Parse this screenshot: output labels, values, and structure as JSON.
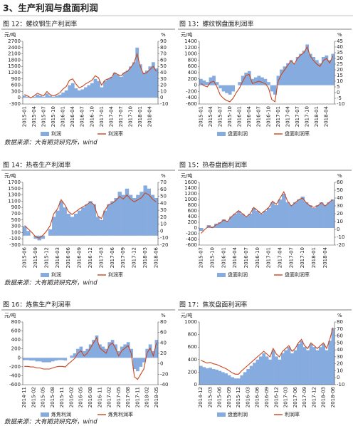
{
  "heading": "3、生产利润与盘面利润",
  "sources": [
    "数据来源：大有期货研究所，wind",
    "数据来源：大有期货研究所，wind",
    "数据来源：大有期货研究所，wind"
  ],
  "chart_data": [
    {
      "type": "combo",
      "title": "图 12：螺纹钢生产利润率",
      "y_label": "元/吨",
      "y2_label": "%",
      "categories": [
        "2015-01",
        null,
        null,
        "2015-04",
        null,
        null,
        "2015-07",
        null,
        null,
        "2015-10",
        null,
        null,
        "2016-01",
        null,
        null,
        "2016-04",
        null,
        null,
        "2016-07",
        null,
        null,
        "2016-10",
        null,
        null,
        "2017-01",
        null,
        null,
        "2017-04",
        null,
        null,
        "2017-07",
        null,
        null,
        "2017-10",
        null,
        null,
        "2018-01",
        null,
        null,
        "2018-04",
        null,
        null
      ],
      "series": [
        {
          "name": "利润",
          "color": "#86abdf",
          "values": [
            100,
            50,
            0,
            50,
            150,
            100,
            50,
            200,
            100,
            50,
            100,
            150,
            250,
            350,
            600,
            700,
            450,
            350,
            400,
            500,
            600,
            700,
            900,
            800,
            500,
            800,
            900,
            1000,
            1200,
            1100,
            1000,
            1200,
            1300,
            1500,
            1700,
            2400,
            1600,
            1200,
            1300,
            1500,
            1700,
            1400
          ]
        },
        {
          "name": "利润率",
          "color": "#c8461e",
          "axis": "y2",
          "values": [
            5,
            3,
            0,
            3,
            7,
            5,
            3,
            10,
            5,
            3,
            5,
            8,
            14,
            18,
            28,
            30,
            22,
            16,
            18,
            22,
            25,
            28,
            35,
            32,
            20,
            28,
            30,
            32,
            40,
            37,
            35,
            40,
            42,
            48,
            55,
            70,
            50,
            38,
            40,
            45,
            50,
            42
          ]
        }
      ],
      "ylim": [
        -300,
        2700
      ],
      "yticks": [
        -300,
        0,
        300,
        600,
        900,
        1200,
        1500,
        1800,
        2100,
        2400,
        2700
      ],
      "y2lim": [
        -10,
        90
      ],
      "y2ticks": [
        -10,
        0,
        10,
        20,
        30,
        40,
        50,
        60,
        70,
        80,
        90
      ]
    },
    {
      "type": "combo",
      "title": "图 13：螺纹钢盘面利润率",
      "y_label": "元/吨",
      "y2_label": "%",
      "categories": [
        "2015-01",
        null,
        null,
        "2015-04",
        null,
        null,
        "2015-07",
        null,
        null,
        "2015-10",
        null,
        null,
        "2016-01",
        null,
        null,
        "2016-04",
        null,
        null,
        "2016-07",
        null,
        null,
        "2016-10",
        null,
        null,
        "2017-01",
        null,
        null,
        "2017-04",
        null,
        null,
        "2017-07",
        null,
        null,
        "2017-10",
        null,
        null,
        "2018-01",
        null,
        null,
        "2018-04",
        null,
        null
      ],
      "series": [
        {
          "name": "盘面利润",
          "color": "#86abdf",
          "values": [
            200,
            150,
            100,
            250,
            300,
            100,
            -100,
            -200,
            -250,
            -300,
            -200,
            0,
            100,
            300,
            400,
            450,
            200,
            250,
            300,
            250,
            200,
            100,
            -200,
            -300,
            300,
            500,
            600,
            700,
            800,
            700,
            900,
            1000,
            1100,
            1300,
            1000,
            900,
            800,
            700,
            900,
            950,
            800,
            1000
          ]
        },
        {
          "name": "盘面利润率",
          "color": "#c8461e",
          "axis": "y2",
          "values": [
            8,
            6,
            5,
            9,
            10,
            5,
            -2,
            -5,
            -7,
            -8,
            -5,
            0,
            4,
            10,
            15,
            16,
            8,
            9,
            10,
            9,
            8,
            4,
            -6,
            -8,
            10,
            16,
            20,
            24,
            28,
            25,
            30,
            33,
            35,
            40,
            32,
            28,
            25,
            23,
            28,
            30,
            26,
            32
          ]
        }
      ],
      "ylim": [
        -600,
        1400
      ],
      "yticks": [
        -600,
        -400,
        -200,
        0,
        200,
        400,
        600,
        800,
        1000,
        1200,
        1400
      ],
      "y2lim": [
        -10,
        45
      ],
      "y2ticks": [
        -10,
        -5,
        0,
        5,
        10,
        15,
        20,
        25,
        30,
        35,
        40,
        45
      ]
    },
    {
      "type": "combo",
      "title": "图 14：热卷生产利润率",
      "y_label": "元/吨",
      "y2_label": "%",
      "categories": [
        "2015-06",
        null,
        null,
        "2015-09",
        null,
        null,
        "2015-12",
        null,
        null,
        "2016-03",
        null,
        null,
        "2016-06",
        null,
        null,
        "2016-09",
        null,
        null,
        "2016-12",
        null,
        null,
        "2017-03",
        null,
        null,
        "2017-06",
        null,
        null,
        "2017-09",
        null,
        null,
        "2017-12",
        null,
        null,
        "2018-03",
        null,
        null,
        "2018-06"
      ],
      "series": [
        {
          "name": "利润",
          "color": "#86abdf",
          "values": [
            300,
            150,
            0,
            -100,
            -150,
            -100,
            0,
            200,
            600,
            800,
            1100,
            900,
            700,
            600,
            700,
            800,
            900,
            1000,
            1100,
            1000,
            600,
            500,
            800,
            1000,
            1100,
            1200,
            1400,
            1300,
            1500,
            1300,
            1200,
            1300,
            1400,
            1600,
            1500,
            1300,
            1200
          ]
        },
        {
          "name": "利润率",
          "color": "#c8461e",
          "axis": "y2",
          "values": [
            8,
            3,
            -2,
            -8,
            -10,
            -6,
            0,
            8,
            25,
            32,
            45,
            38,
            28,
            24,
            28,
            32,
            35,
            38,
            42,
            38,
            22,
            18,
            30,
            38,
            40,
            44,
            50,
            46,
            52,
            46,
            42,
            45,
            48,
            55,
            52,
            46,
            42
          ]
        }
      ],
      "ylim": [
        -300,
        1700
      ],
      "yticks": [
        -300,
        -100,
        100,
        300,
        500,
        700,
        900,
        1100,
        1300,
        1500,
        1700
      ],
      "y2lim": [
        -20,
        70
      ],
      "y2ticks": [
        -20,
        -10,
        0,
        10,
        20,
        30,
        40,
        50,
        60,
        70
      ]
    },
    {
      "type": "combo",
      "title": "图 15：热卷盘面利润率",
      "y_label": "元/吨",
      "y2_label": "%",
      "categories": [
        "2015-07",
        null,
        null,
        "2015-10",
        null,
        null,
        "2016-01",
        null,
        null,
        "2016-04",
        null,
        null,
        "2016-07",
        null,
        null,
        "2016-10",
        null,
        null,
        "2017-01",
        null,
        null,
        "2017-04",
        null,
        null,
        "2017-07",
        null,
        null,
        "2017-10",
        null,
        null,
        "2018-01",
        null,
        null,
        "2018-04",
        null,
        null
      ],
      "series": [
        {
          "name": "盘面利润",
          "color": "#86abdf",
          "values": [
            -100,
            0,
            100,
            50,
            150,
            200,
            300,
            250,
            400,
            500,
            600,
            500,
            400,
            500,
            700,
            600,
            500,
            600,
            700,
            900,
            800,
            1000,
            1200,
            900,
            800,
            900,
            1000,
            1100,
            900,
            800,
            700,
            800,
            900,
            800,
            900,
            1000
          ]
        },
        {
          "name": "盘面利润率",
          "color": "#c8461e",
          "axis": "y2",
          "values": [
            -5,
            0,
            4,
            2,
            6,
            8,
            12,
            10,
            16,
            20,
            24,
            20,
            16,
            20,
            28,
            24,
            20,
            24,
            28,
            36,
            32,
            40,
            48,
            36,
            30,
            34,
            38,
            40,
            34,
            30,
            28,
            30,
            34,
            30,
            34,
            38
          ]
        }
      ],
      "ylim": [
        -600,
        1600
      ],
      "yticks": [
        -600,
        -400,
        -200,
        0,
        200,
        400,
        600,
        800,
        1000,
        1200,
        1400,
        1600
      ],
      "y2lim": [
        -20,
        60
      ],
      "y2ticks": [
        -20,
        -10,
        0,
        10,
        20,
        30,
        40,
        50,
        60
      ]
    },
    {
      "type": "combo",
      "title": "图 16：炼焦生产利润率",
      "y_label": "元/吨",
      "y2_label": "%",
      "categories": [
        "2014-11",
        null,
        null,
        "2015-02",
        null,
        null,
        "2015-05",
        null,
        null,
        "2015-08",
        null,
        null,
        "2015-11",
        null,
        null,
        "2016-02",
        null,
        null,
        "2016-05",
        null,
        null,
        "2016-08",
        null,
        null,
        "2016-11",
        null,
        null,
        "2017-02",
        null,
        null,
        "2017-05",
        null,
        null,
        "2017-08",
        null,
        null,
        "2017-11",
        null,
        null,
        "2018-02",
        null,
        null,
        "2018-05"
      ],
      "series": [
        {
          "name": "炼焦利润",
          "color": "#86abdf",
          "values": [
            -50,
            -50,
            -60,
            -60,
            -80,
            -80,
            -100,
            -100,
            -100,
            -80,
            -60,
            -50,
            -50,
            -60,
            0,
            50,
            100,
            200,
            250,
            150,
            200,
            300,
            400,
            500,
            300,
            250,
            200,
            350,
            400,
            300,
            150,
            250,
            300,
            350,
            200,
            -250,
            -300,
            -200,
            -100,
            200,
            300,
            150,
            400
          ]
        },
        {
          "name": "炼焦利润率",
          "color": "#c8461e",
          "axis": "y2",
          "values": [
            -5,
            -5,
            -6,
            -6,
            -8,
            -8,
            -10,
            -10,
            -10,
            -8,
            -6,
            -5,
            -5,
            -6,
            0,
            5,
            10,
            20,
            25,
            15,
            20,
            30,
            40,
            50,
            30,
            25,
            20,
            35,
            40,
            30,
            15,
            25,
            30,
            35,
            20,
            -25,
            -30,
            -20,
            -10,
            20,
            30,
            15,
            40
          ]
        }
      ],
      "ylim": [
        -600,
        800
      ],
      "yticks": [
        -600,
        -400,
        -200,
        0,
        200,
        400,
        600,
        800
      ],
      "y2lim": [
        -40,
        80
      ],
      "y2ticks": [
        -40,
        -20,
        0,
        20,
        40,
        60,
        80
      ]
    },
    {
      "type": "combo",
      "title": "图 17：焦炭盘面利润率",
      "y_label": "元/吨",
      "y2_label": "%",
      "categories": [
        "2014-12",
        null,
        null,
        "2015-03",
        null,
        null,
        "2015-06",
        null,
        null,
        "2015-09",
        null,
        null,
        "2015-12",
        null,
        null,
        "2016-03",
        null,
        null,
        "2016-06",
        null,
        null,
        "2016-09",
        null,
        null,
        "2016-12",
        null,
        null,
        "2017-03",
        null,
        null,
        "2017-06",
        null,
        null,
        "2017-09",
        null,
        null,
        "2017-12",
        null,
        null,
        "2018-03",
        null,
        null,
        "2018-06"
      ],
      "series": [
        {
          "name": "盘面利润",
          "color": "#86abdf",
          "values": [
            300,
            280,
            260,
            270,
            250,
            240,
            220,
            200,
            180,
            150,
            120,
            100,
            100,
            150,
            200,
            250,
            300,
            350,
            400,
            450,
            500,
            450,
            400,
            550,
            450,
            400,
            500,
            550,
            600,
            500,
            550,
            650,
            700,
            600,
            550,
            650,
            600,
            550,
            600,
            650,
            550,
            700,
            900
          ]
        },
        {
          "name": "利润率",
          "color": "#c8461e",
          "axis": "y2",
          "values": [
            25,
            23,
            21,
            22,
            20,
            19,
            17,
            15,
            13,
            10,
            7,
            5,
            5,
            10,
            14,
            18,
            22,
            26,
            30,
            34,
            38,
            34,
            30,
            42,
            34,
            30,
            38,
            42,
            46,
            38,
            42,
            50,
            55,
            46,
            42,
            50,
            46,
            42,
            46,
            50,
            42,
            55,
            72
          ]
        }
      ],
      "ylim": [
        0,
        1000
      ],
      "yticks": [
        0,
        200,
        400,
        600,
        800,
        1000
      ],
      "y2lim": [
        -10,
        80
      ],
      "y2ticks": [
        -10,
        0,
        10,
        20,
        30,
        40,
        50,
        60,
        70,
        80
      ]
    }
  ]
}
